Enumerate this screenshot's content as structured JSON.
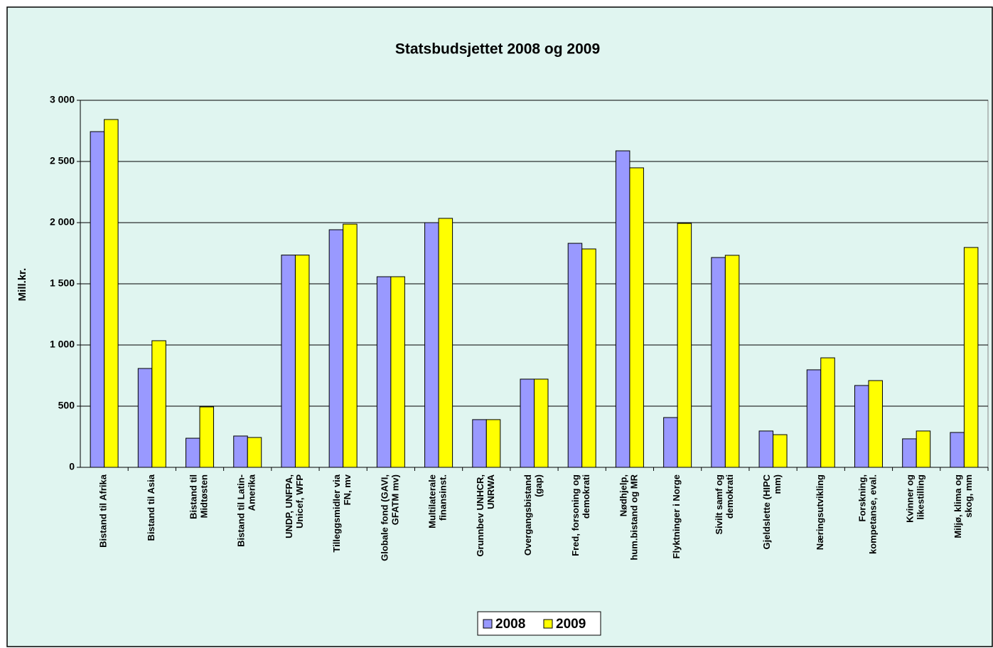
{
  "chart_data": {
    "type": "bar",
    "title": "Statsbudsjettet 2008 og 2009",
    "y_label": "Mill.kr.",
    "categories": [
      "Bistand til Afrika",
      "Bistand til Asia",
      "Bistand til\nMidtøsten",
      "Bistand til Latin-\nAmerika",
      "UNDP, UNFPA,\nUnicef, WFP",
      "Tilleggsmidler via\nFN, mv",
      "Globale fond (GAVI,\nGFATM mv)",
      "Multilaterale\nfinansinst.",
      "Grunnbev UNHCR,\nUNRWA",
      "Overgangsbistand\n(gap)",
      "Fred, forsoning og\ndemokrati",
      "Nødhjelp,\nhum.bistand og MR",
      "Flyktninger i Norge",
      "Sivilt samf og\ndemokrati",
      "Gjeldslette (HIPC\nmm)",
      "Næringsutvikling",
      "Forskning,\nkompetanse, eval.",
      "Kvinner og\nlikestilling",
      "Miljø, klima og\nskog, mm"
    ],
    "series": [
      {
        "name": "2008",
        "color": "#9999ff",
        "values": [
          2744,
          808,
          238,
          256,
          1735,
          1942,
          1558,
          2000,
          390,
          721,
          1831,
          2587,
          407,
          1715,
          297,
          797,
          669,
          233,
          285
        ]
      },
      {
        "name": "2009",
        "color": "#ffff00",
        "values": [
          2843,
          1035,
          494,
          244,
          1735,
          1988,
          1558,
          2035,
          390,
          721,
          1785,
          2448,
          1994,
          1733,
          267,
          895,
          709,
          297,
          1797
        ]
      }
    ],
    "ylim": [
      0,
      3000
    ],
    "yticks": [
      0,
      500,
      {
        "value": 1000,
        "label": "1 000"
      },
      {
        "value": 1500,
        "label": "1 500"
      },
      {
        "value": 2000,
        "label": "2 000"
      },
      {
        "value": 2500,
        "label": "2 500"
      },
      {
        "value": 3000,
        "label": "3 000"
      }
    ],
    "grid": true,
    "legend": "bottom"
  }
}
